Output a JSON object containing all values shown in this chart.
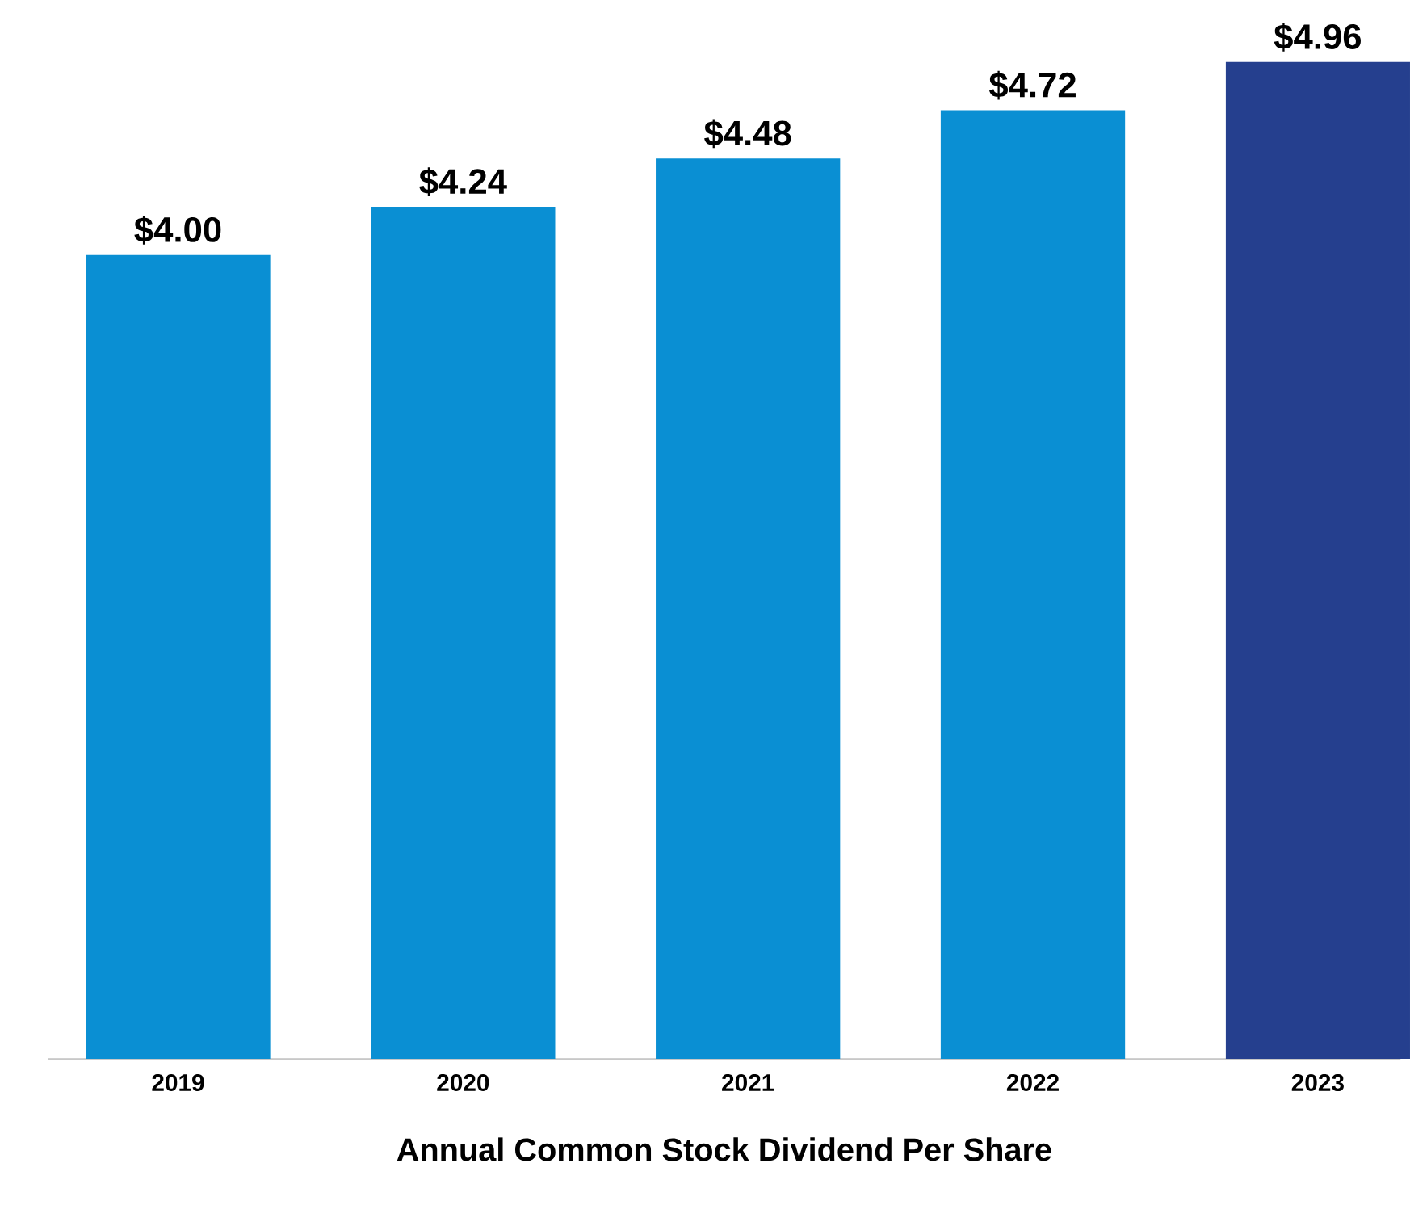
{
  "chart_data": {
    "type": "bar",
    "xlabel": "Annual Common Stock Dividend Per Share",
    "categories": [
      "2019",
      "2020",
      "2021",
      "2022",
      "2023"
    ],
    "values": [
      4.0,
      4.24,
      4.48,
      4.72,
      4.96
    ],
    "value_labels": [
      "$4.00",
      "$4.24",
      "$4.48",
      "$4.72",
      "$4.96"
    ],
    "colors": [
      "#0a8fd3",
      "#0a8fd3",
      "#0a8fd3",
      "#0a8fd3",
      "#253f8e"
    ]
  }
}
